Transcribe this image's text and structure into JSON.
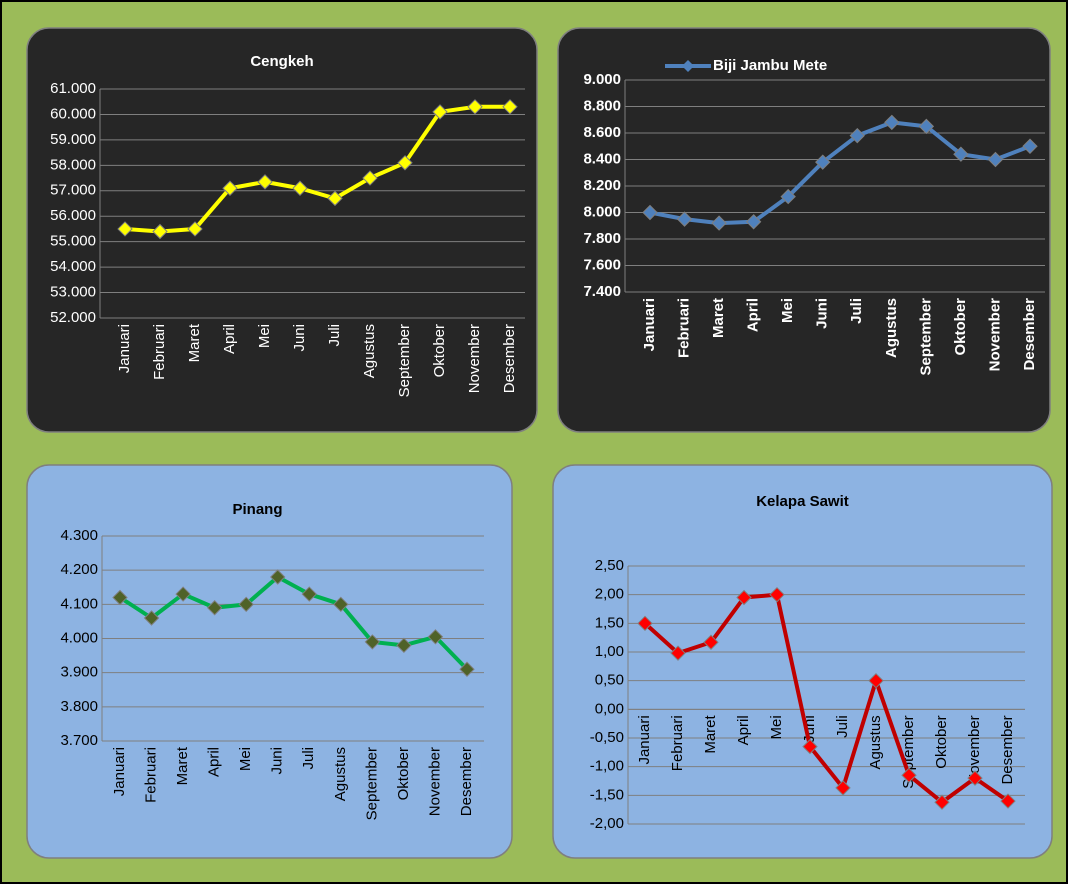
{
  "chart_data": [
    {
      "type": "line",
      "title": "Cengkeh",
      "categories": [
        "Januari",
        "Februari",
        "Maret",
        "April",
        "Mei",
        "Juni",
        "Juli",
        "Agustus",
        "September",
        "Oktober",
        "November",
        "Desember"
      ],
      "series": [
        {
          "color": "#ffff00",
          "marker_color": "#ffff00",
          "values": [
            55500,
            55400,
            55500,
            57100,
            57350,
            57100,
            56700,
            57500,
            58100,
            60100,
            60300,
            60300
          ]
        }
      ],
      "ylim": [
        52000,
        61000
      ],
      "yticks": [
        {
          "value": 52000,
          "label": "52.000"
        },
        {
          "value": 53000,
          "label": "53.000"
        },
        {
          "value": 54000,
          "label": "54.000"
        },
        {
          "value": 55000,
          "label": "55.000"
        },
        {
          "value": 56000,
          "label": "56.000"
        },
        {
          "value": 57000,
          "label": "57.000"
        },
        {
          "value": 58000,
          "label": "58.000"
        },
        {
          "value": 59000,
          "label": "59.000"
        },
        {
          "value": 60000,
          "label": "60.000"
        },
        {
          "value": 61000,
          "label": "61.000"
        }
      ],
      "grid": true
    },
    {
      "type": "line",
      "categories": [
        "Januari",
        "Februari",
        "Maret",
        "April",
        "Mei",
        "Juni",
        "Juli",
        "Agustus",
        "September",
        "Oktober",
        "November",
        "Desember"
      ],
      "series": [
        {
          "name": "Biji Jambu Mete",
          "color": "#4f81bd",
          "marker_color": "#4f81bd",
          "values": [
            8000,
            7950,
            7920,
            7930,
            8120,
            8380,
            8580,
            8680,
            8650,
            8440,
            8400,
            8500
          ]
        }
      ],
      "ylim": [
        7400,
        9000
      ],
      "yticks": [
        {
          "value": 7400,
          "label": "7.400"
        },
        {
          "value": 7600,
          "label": "7.600"
        },
        {
          "value": 7800,
          "label": "7.800"
        },
        {
          "value": 8000,
          "label": "8.000"
        },
        {
          "value": 8200,
          "label": "8.200"
        },
        {
          "value": 8400,
          "label": "8.400"
        },
        {
          "value": 8600,
          "label": "8.600"
        },
        {
          "value": 8800,
          "label": "8.800"
        },
        {
          "value": 9000,
          "label": "9.000"
        }
      ],
      "grid": true,
      "legend": "top"
    },
    {
      "type": "line",
      "title": "Pinang",
      "categories": [
        "Januari",
        "Februari",
        "Maret",
        "April",
        "Mei",
        "Juni",
        "Juli",
        "Agustus",
        "September",
        "Oktober",
        "November",
        "Desember"
      ],
      "series": [
        {
          "color": "#00b050",
          "marker_color": "#4f6228",
          "values": [
            4120,
            4060,
            4130,
            4090,
            4100,
            4180,
            4130,
            4100,
            3990,
            3980,
            4005,
            3910
          ]
        }
      ],
      "ylim": [
        3700,
        4300
      ],
      "yticks": [
        {
          "value": 3700,
          "label": "3.700"
        },
        {
          "value": 3800,
          "label": "3.800"
        },
        {
          "value": 3900,
          "label": "3.900"
        },
        {
          "value": 4000,
          "label": "4.000"
        },
        {
          "value": 4100,
          "label": "4.100"
        },
        {
          "value": 4200,
          "label": "4.200"
        },
        {
          "value": 4300,
          "label": "4.300"
        }
      ],
      "grid": true
    },
    {
      "type": "line",
      "title": "Kelapa Sawit",
      "categories": [
        "Januari",
        "Februari",
        "Maret",
        "April",
        "Mei",
        "Juni",
        "Juli",
        "Agustus",
        "September",
        "Oktober",
        "November",
        "Desember"
      ],
      "series": [
        {
          "color": "#c00000",
          "marker_color": "#ff0000",
          "values": [
            1.5,
            0.98,
            1.17,
            1.95,
            2.0,
            -0.65,
            -1.37,
            0.5,
            -1.15,
            -1.62,
            -1.2,
            -1.6
          ]
        }
      ],
      "ylim": [
        -2,
        2.5
      ],
      "yticks": [
        {
          "value": -2,
          "label": "-2,00"
        },
        {
          "value": -1.5,
          "label": "-1,50"
        },
        {
          "value": -1,
          "label": "-1,00"
        },
        {
          "value": -0.5,
          "label": "-0,50"
        },
        {
          "value": 0,
          "label": "0,00"
        },
        {
          "value": 0.5,
          "label": "0,50"
        },
        {
          "value": 1,
          "label": "1,00"
        },
        {
          "value": 1.5,
          "label": "1,50"
        },
        {
          "value": 2,
          "label": "2,00"
        },
        {
          "value": 2.5,
          "label": "2,50"
        }
      ],
      "grid": true
    }
  ]
}
